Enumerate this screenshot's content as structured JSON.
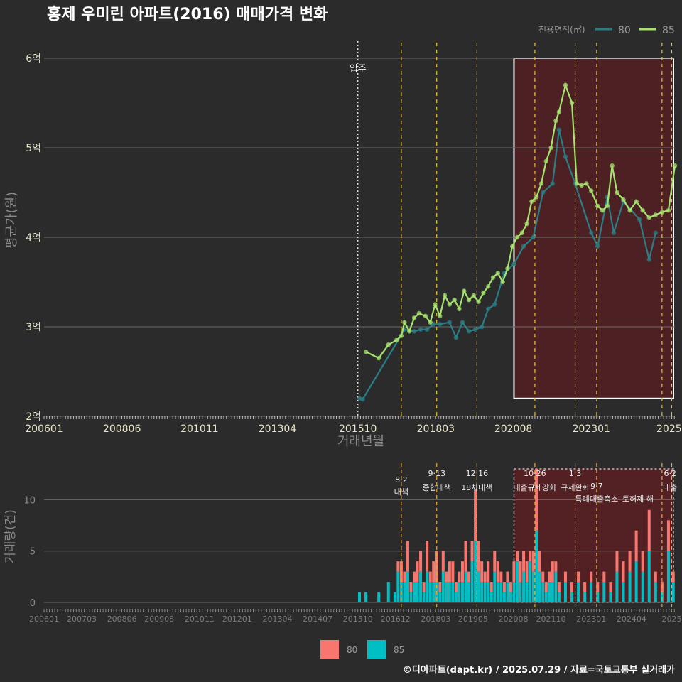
{
  "title": "홍제 우미린 아파트(2016) 매매가격 변화",
  "footer": "©디아파트(dapt.kr) / 2025.07.29 / 자료=국토교통부 실거래가",
  "colors": {
    "background": "#2b2b2c",
    "series80_line": "#2a7f86",
    "series85_line": "#a6e36e",
    "bar80": "#f8766d",
    "bar85": "#00bfc4",
    "policy_line": "#e8c43a",
    "highlight_fill": "#5a1f22",
    "grid": "#6a6a6a",
    "text": "#e8e4c9",
    "axis_title": "#8a8a8a"
  },
  "chart_data": [
    {
      "type": "line",
      "title": "홍제 우미린 아파트(2016) 매매가격 변화",
      "xlabel": "거래년월",
      "ylabel": "평균가(원)",
      "legend_title": "전용면적(㎡)",
      "legend_position": "top-right",
      "x_range": [
        2006.0,
        2025.6
      ],
      "ylim": [
        2,
        6
      ],
      "x_ticks": [
        {
          "label": "200601",
          "value": 2006.0
        },
        {
          "label": "200806",
          "value": 2008.42
        },
        {
          "label": "201011",
          "value": 2010.83
        },
        {
          "label": "201304",
          "value": 2013.25
        },
        {
          "label": "201510",
          "value": 2015.75
        },
        {
          "label": "201803",
          "value": 2018.17
        },
        {
          "label": "202008",
          "value": 2020.58
        },
        {
          "label": "202301",
          "value": 2023.0
        },
        {
          "label": "2025",
          "value": 2025.42
        }
      ],
      "y_ticks": [
        {
          "label": "2억",
          "value": 2
        },
        {
          "label": "3억",
          "value": 3
        },
        {
          "label": "4억",
          "value": 4
        },
        {
          "label": "5억",
          "value": 5
        },
        {
          "label": "6억",
          "value": 6
        }
      ],
      "move_in": {
        "label": "입주",
        "x": 2015.75
      },
      "policy_lines": [
        2017.1,
        2018.2,
        2019.45,
        2021.25,
        2022.5,
        2023.17,
        2025.2,
        2025.5
      ],
      "highlight_box": {
        "x_start": 2020.6,
        "x_end": 2025.6,
        "y_start": 2.2,
        "y_end": 6.0
      },
      "series": [
        {
          "name": "80",
          "x": [
            2015.8,
            2015.9,
            2017.2,
            2017.5,
            2017.7,
            2017.9,
            2018.1,
            2018.3,
            2018.6,
            2018.8,
            2019.0,
            2019.2,
            2019.4,
            2019.6,
            2019.8,
            2020.0,
            2020.3,
            2020.6,
            2020.9,
            2021.2,
            2021.5,
            2021.8,
            2022.0,
            2022.2,
            2022.5,
            2023.0,
            2023.2,
            2023.5,
            2023.7,
            2024.0,
            2024.5,
            2024.8,
            2025.0
          ],
          "values": [
            2.2,
            2.19,
            2.97,
            2.95,
            2.97,
            2.97,
            3.03,
            3.03,
            3.05,
            2.88,
            3.05,
            2.95,
            2.97,
            3.0,
            3.2,
            3.25,
            3.6,
            3.7,
            3.9,
            4.0,
            4.5,
            4.6,
            5.2,
            4.9,
            4.6,
            4.05,
            3.9,
            4.45,
            4.05,
            4.4,
            4.2,
            3.75,
            4.05
          ]
        },
        {
          "name": "85",
          "x": [
            2016.0,
            2016.4,
            2016.7,
            2016.95,
            2017.1,
            2017.2,
            2017.35,
            2017.5,
            2017.65,
            2017.85,
            2018.0,
            2018.15,
            2018.3,
            2018.45,
            2018.6,
            2018.75,
            2018.9,
            2019.05,
            2019.2,
            2019.35,
            2019.5,
            2019.65,
            2019.8,
            2019.95,
            2020.1,
            2020.25,
            2020.4,
            2020.55,
            2020.7,
            2020.85,
            2021.0,
            2021.15,
            2021.3,
            2021.45,
            2021.6,
            2021.75,
            2021.9,
            2022.0,
            2022.2,
            2022.4,
            2022.55,
            2022.7,
            2022.85,
            2023.0,
            2023.2,
            2023.35,
            2023.5,
            2023.65,
            2023.8,
            2024.0,
            2024.2,
            2024.4,
            2024.6,
            2024.8,
            2025.0,
            2025.2,
            2025.4,
            2025.6
          ],
          "values": [
            2.72,
            2.65,
            2.8,
            2.85,
            2.9,
            3.05,
            2.95,
            3.1,
            3.15,
            3.12,
            3.05,
            3.25,
            3.12,
            3.35,
            3.25,
            3.3,
            3.2,
            3.4,
            3.3,
            3.35,
            3.28,
            3.38,
            3.45,
            3.55,
            3.6,
            3.5,
            3.65,
            3.9,
            4.0,
            4.05,
            4.15,
            4.4,
            4.45,
            4.6,
            4.85,
            5.0,
            5.3,
            5.4,
            5.7,
            5.5,
            4.6,
            4.58,
            4.6,
            4.52,
            4.35,
            4.3,
            4.35,
            4.8,
            4.5,
            4.42,
            4.3,
            4.4,
            4.3,
            4.22,
            4.25,
            4.28,
            4.3,
            4.8
          ]
        }
      ]
    },
    {
      "type": "bar",
      "ylabel": "거래량(건)",
      "xlabel": "",
      "x_range": [
        2006.0,
        2025.6
      ],
      "ylim": [
        0,
        13
      ],
      "y_ticks": [
        {
          "label": "0",
          "value": 0
        },
        {
          "label": "5",
          "value": 5
        },
        {
          "label": "10",
          "value": 10
        }
      ],
      "x_ticks": [
        {
          "label": "200601",
          "value": 2006.0
        },
        {
          "label": "200703",
          "value": 2007.17
        },
        {
          "label": "200806",
          "value": 2008.42
        },
        {
          "label": "200908",
          "value": 2009.58
        },
        {
          "label": "201011",
          "value": 2010.83
        },
        {
          "label": "201201",
          "value": 2012.0
        },
        {
          "label": "201304",
          "value": 2013.25
        },
        {
          "label": "201407",
          "value": 2014.5
        },
        {
          "label": "201510",
          "value": 2015.75
        },
        {
          "label": "201612",
          "value": 2016.92
        },
        {
          "label": "201803",
          "value": 2018.17
        },
        {
          "label": "201905",
          "value": 2019.33
        },
        {
          "label": "202008",
          "value": 2020.58
        },
        {
          "label": "202110",
          "value": 2021.75
        },
        {
          "label": "202301",
          "value": 2023.0
        },
        {
          "label": "202404",
          "value": 2024.25
        },
        {
          "label": "2025",
          "value": 2025.5
        }
      ],
      "policy_lines": [
        2017.1,
        2018.2,
        2019.45,
        2021.25,
        2022.5,
        2023.17,
        2025.2,
        2025.5
      ],
      "highlight_box": {
        "x_start": 2020.6,
        "x_end": 2025.6,
        "y_start": 0,
        "y_end": 13
      },
      "annotations": [
        {
          "date": "8·2",
          "text": "대책",
          "x": 2017.1
        },
        {
          "date": "9·13",
          "text": "종합대책",
          "x": 2018.2
        },
        {
          "date": "12·16",
          "text": "18차대책",
          "x": 2019.45
        },
        {
          "date": "10·26",
          "text": "대출규제강화",
          "x": 2021.25
        },
        {
          "date": "1·3",
          "text": "규제완화",
          "x": 2022.5
        },
        {
          "date": "9·7",
          "text": "특례대출축소",
          "x": 2023.17
        },
        {
          "date": "",
          "text": "토허제 해",
          "x": 2024.45
        },
        {
          "date": "6·2",
          "text": "대출",
          "x": 2025.45
        }
      ],
      "legend": [
        {
          "name": "80",
          "color": "#f8766d"
        },
        {
          "name": "85",
          "color": "#00bfc4"
        }
      ],
      "series": [
        {
          "name": "85",
          "x": [
            2015.8,
            2016.0,
            2016.4,
            2016.7,
            2016.9,
            2017.0,
            2017.1,
            2017.2,
            2017.3,
            2017.4,
            2017.5,
            2017.6,
            2017.7,
            2017.8,
            2017.9,
            2018.0,
            2018.1,
            2018.2,
            2018.3,
            2018.4,
            2018.5,
            2018.6,
            2018.7,
            2018.8,
            2018.9,
            2019.0,
            2019.1,
            2019.2,
            2019.3,
            2019.4,
            2019.5,
            2019.6,
            2019.7,
            2019.8,
            2019.9,
            2020.0,
            2020.1,
            2020.2,
            2020.3,
            2020.4,
            2020.5,
            2020.6,
            2020.7,
            2020.8,
            2020.9,
            2021.0,
            2021.1,
            2021.2,
            2021.3,
            2021.4,
            2021.5,
            2021.6,
            2021.7,
            2021.8,
            2021.9,
            2022.0,
            2022.2,
            2022.4,
            2022.6,
            2022.8,
            2023.0,
            2023.2,
            2023.4,
            2023.6,
            2023.8,
            2024.0,
            2024.2,
            2024.4,
            2024.6,
            2024.8,
            2025.0,
            2025.2,
            2025.4,
            2025.55
          ],
          "values": [
            1,
            1,
            1,
            2,
            1,
            3,
            2,
            2,
            3,
            1,
            2,
            2,
            3,
            1,
            3,
            2,
            2,
            2,
            1,
            3,
            2,
            2,
            2,
            1,
            2,
            2,
            3,
            2,
            4,
            6,
            3,
            2,
            2,
            2,
            1,
            3,
            2,
            2,
            1,
            2,
            1,
            2,
            4,
            2,
            3,
            2,
            4,
            3,
            7,
            3,
            2,
            1,
            2,
            2,
            3,
            1,
            2,
            1,
            2,
            1,
            2,
            1,
            2,
            1,
            3,
            2,
            3,
            4,
            3,
            5,
            2,
            1,
            5,
            2
          ]
        },
        {
          "name": "80",
          "x": [
            2015.8,
            2016.0,
            2016.4,
            2016.7,
            2016.9,
            2017.0,
            2017.1,
            2017.2,
            2017.3,
            2017.4,
            2017.5,
            2017.6,
            2017.7,
            2017.8,
            2017.9,
            2018.0,
            2018.1,
            2018.2,
            2018.3,
            2018.4,
            2018.5,
            2018.6,
            2018.7,
            2018.8,
            2018.9,
            2019.0,
            2019.1,
            2019.2,
            2019.3,
            2019.4,
            2019.5,
            2019.6,
            2019.7,
            2019.8,
            2019.9,
            2020.0,
            2020.1,
            2020.2,
            2020.3,
            2020.4,
            2020.5,
            2020.6,
            2020.7,
            2020.8,
            2020.9,
            2021.0,
            2021.1,
            2021.2,
            2021.3,
            2021.4,
            2021.5,
            2021.6,
            2021.7,
            2021.8,
            2021.9,
            2022.0,
            2022.2,
            2022.4,
            2022.6,
            2022.8,
            2023.0,
            2023.2,
            2023.4,
            2023.6,
            2023.8,
            2024.0,
            2024.2,
            2024.4,
            2024.6,
            2024.8,
            2025.0,
            2025.2,
            2025.4,
            2025.55
          ],
          "values": [
            0,
            0,
            0,
            0,
            0,
            1,
            2,
            1,
            3,
            1,
            1,
            2,
            2,
            1,
            3,
            1,
            2,
            3,
            1,
            2,
            1,
            2,
            2,
            1,
            1,
            2,
            3,
            1,
            2,
            5,
            3,
            2,
            1,
            2,
            1,
            2,
            2,
            1,
            1,
            1,
            1,
            2,
            1,
            2,
            2,
            2,
            1,
            2,
            6,
            2,
            1,
            1,
            1,
            2,
            1,
            1,
            1,
            1,
            1,
            1,
            1,
            1,
            1,
            1,
            2,
            2,
            2,
            3,
            2,
            4,
            1,
            1,
            3,
            1
          ]
        }
      ]
    }
  ]
}
